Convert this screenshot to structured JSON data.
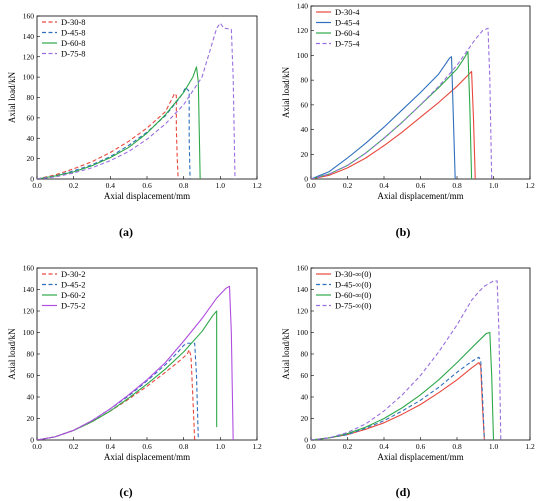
{
  "chart_data": [
    {
      "type": "line",
      "panel_label": "(a)",
      "xlabel": "Axial displacement/mm",
      "ylabel": "Axial load/kN",
      "xlim": [
        0,
        1.2
      ],
      "ylim": [
        0,
        160
      ],
      "xticks": [
        "0.0",
        "0.2",
        "0.4",
        "0.6",
        "0.8",
        "1.0",
        "1.2"
      ],
      "yticks": [
        "0",
        "20",
        "40",
        "60",
        "80",
        "100",
        "120",
        "140",
        "160"
      ],
      "legend_position": "top-left",
      "series": [
        {
          "name": "D-30-8",
          "color": "#e8473c",
          "dash": "dashed",
          "points": [
            [
              0,
              0
            ],
            [
              0.1,
              4
            ],
            [
              0.2,
              10
            ],
            [
              0.3,
              17
            ],
            [
              0.4,
              26
            ],
            [
              0.5,
              37
            ],
            [
              0.6,
              50
            ],
            [
              0.7,
              66
            ],
            [
              0.74,
              80
            ],
            [
              0.75,
              84
            ],
            [
              0.76,
              82
            ],
            [
              0.76,
              50
            ],
            [
              0.765,
              20
            ],
            [
              0.77,
              0
            ]
          ]
        },
        {
          "name": "D-45-8",
          "color": "#2f6fbd",
          "dash": "dashed",
          "points": [
            [
              0,
              0
            ],
            [
              0.1,
              3
            ],
            [
              0.2,
              8
            ],
            [
              0.3,
              14
            ],
            [
              0.4,
              22
            ],
            [
              0.5,
              33
            ],
            [
              0.6,
              46
            ],
            [
              0.7,
              62
            ],
            [
              0.78,
              80
            ],
            [
              0.8,
              86
            ],
            [
              0.81,
              90
            ],
            [
              0.83,
              86
            ],
            [
              0.83,
              40
            ],
            [
              0.835,
              0
            ]
          ]
        },
        {
          "name": "D-60-8",
          "color": "#2ea84a",
          "dash": "solid",
          "points": [
            [
              0,
              0
            ],
            [
              0.1,
              3
            ],
            [
              0.2,
              7
            ],
            [
              0.3,
              13
            ],
            [
              0.4,
              21
            ],
            [
              0.5,
              31
            ],
            [
              0.6,
              45
            ],
            [
              0.7,
              63
            ],
            [
              0.8,
              85
            ],
            [
              0.85,
              100
            ],
            [
              0.87,
              110
            ],
            [
              0.88,
              95
            ],
            [
              0.89,
              0
            ]
          ]
        },
        {
          "name": "D-75-8",
          "color": "#9a6fe0",
          "dash": "dashed",
          "points": [
            [
              0,
              0
            ],
            [
              0.1,
              2
            ],
            [
              0.2,
              6
            ],
            [
              0.3,
              11
            ],
            [
              0.4,
              18
            ],
            [
              0.5,
              27
            ],
            [
              0.6,
              39
            ],
            [
              0.7,
              54
            ],
            [
              0.8,
              73
            ],
            [
              0.9,
              100
            ],
            [
              0.95,
              130
            ],
            [
              0.98,
              148
            ],
            [
              1.0,
              153
            ],
            [
              1.02,
              148
            ],
            [
              1.06,
              147
            ],
            [
              1.07,
              100
            ],
            [
              1.08,
              0
            ]
          ]
        }
      ]
    },
    {
      "type": "line",
      "panel_label": "(b)",
      "xlabel": "Axial displacement/mm",
      "ylabel": "Axial load/kN",
      "xlim": [
        0,
        1.2
      ],
      "ylim": [
        0,
        140
      ],
      "xticks": [
        "0.0",
        "0.2",
        "0.4",
        "0.6",
        "0.8",
        "1.0",
        "1.2"
      ],
      "yticks": [
        "0",
        "20",
        "40",
        "60",
        "80",
        "100",
        "120",
        "140"
      ],
      "legend_position": "top-left",
      "series": [
        {
          "name": "D-30-4",
          "color": "#e8473c",
          "dash": "solid",
          "points": [
            [
              0,
              0
            ],
            [
              0.1,
              3
            ],
            [
              0.2,
              9
            ],
            [
              0.3,
              17
            ],
            [
              0.4,
              27
            ],
            [
              0.5,
              38
            ],
            [
              0.6,
              50
            ],
            [
              0.7,
              62
            ],
            [
              0.8,
              75
            ],
            [
              0.86,
              84
            ],
            [
              0.88,
              87
            ],
            [
              0.89,
              50
            ],
            [
              0.9,
              0
            ]
          ]
        },
        {
          "name": "D-45-4",
          "color": "#2f6fbd",
          "dash": "solid",
          "points": [
            [
              0,
              0
            ],
            [
              0.1,
              6
            ],
            [
              0.2,
              17
            ],
            [
              0.3,
              29
            ],
            [
              0.4,
              42
            ],
            [
              0.5,
              56
            ],
            [
              0.6,
              70
            ],
            [
              0.7,
              85
            ],
            [
              0.76,
              98
            ],
            [
              0.77,
              99
            ],
            [
              0.78,
              50
            ],
            [
              0.79,
              0
            ]
          ]
        },
        {
          "name": "D-60-4",
          "color": "#2ea84a",
          "dash": "solid",
          "points": [
            [
              0,
              0
            ],
            [
              0.1,
              4
            ],
            [
              0.2,
              11
            ],
            [
              0.3,
              21
            ],
            [
              0.4,
              33
            ],
            [
              0.5,
              46
            ],
            [
              0.6,
              60
            ],
            [
              0.7,
              74
            ],
            [
              0.8,
              89
            ],
            [
              0.84,
              98
            ],
            [
              0.86,
              103
            ],
            [
              0.87,
              60
            ],
            [
              0.88,
              0
            ]
          ]
        },
        {
          "name": "D-75-4",
          "color": "#9a6fe0",
          "dash": "dashed",
          "points": [
            [
              0,
              0
            ],
            [
              0.1,
              4
            ],
            [
              0.2,
              11
            ],
            [
              0.3,
              21
            ],
            [
              0.4,
              33
            ],
            [
              0.5,
              46
            ],
            [
              0.6,
              60
            ],
            [
              0.7,
              75
            ],
            [
              0.8,
              92
            ],
            [
              0.9,
              113
            ],
            [
              0.94,
              120
            ],
            [
              0.97,
              122
            ],
            [
              0.98,
              80
            ],
            [
              0.99,
              0
            ]
          ]
        }
      ]
    },
    {
      "type": "line",
      "panel_label": "(c)",
      "xlabel": "Axial displacement/mm",
      "ylabel": "Axial load/kN",
      "xlim": [
        0,
        1.2
      ],
      "ylim": [
        0,
        160
      ],
      "xticks": [
        "0.0",
        "0.2",
        "0.4",
        "0.6",
        "0.8",
        "1.0",
        "1.2"
      ],
      "yticks": [
        "0",
        "20",
        "40",
        "60",
        "80",
        "100",
        "120",
        "140",
        "160"
      ],
      "legend_position": "top-left",
      "series": [
        {
          "name": "D-30-2",
          "color": "#e8473c",
          "dash": "dashed",
          "points": [
            [
              0,
              0
            ],
            [
              0.1,
              3
            ],
            [
              0.2,
              9
            ],
            [
              0.3,
              17
            ],
            [
              0.4,
              27
            ],
            [
              0.5,
              38
            ],
            [
              0.6,
              50
            ],
            [
              0.7,
              63
            ],
            [
              0.78,
              74
            ],
            [
              0.82,
              80
            ],
            [
              0.83,
              84
            ],
            [
              0.84,
              78
            ],
            [
              0.85,
              40
            ],
            [
              0.86,
              0
            ]
          ]
        },
        {
          "name": "D-45-2",
          "color": "#2f6fbd",
          "dash": "dashed",
          "points": [
            [
              0,
              0
            ],
            [
              0.1,
              3
            ],
            [
              0.2,
              9
            ],
            [
              0.3,
              18
            ],
            [
              0.4,
              29
            ],
            [
              0.5,
              41
            ],
            [
              0.6,
              55
            ],
            [
              0.7,
              70
            ],
            [
              0.77,
              82
            ],
            [
              0.8,
              88
            ],
            [
              0.82,
              90
            ],
            [
              0.86,
              90
            ],
            [
              0.87,
              60
            ],
            [
              0.88,
              0
            ]
          ]
        },
        {
          "name": "D-60-2",
          "color": "#2ea84a",
          "dash": "solid",
          "points": [
            [
              0,
              0
            ],
            [
              0.1,
              3
            ],
            [
              0.2,
              9
            ],
            [
              0.3,
              17
            ],
            [
              0.4,
              27
            ],
            [
              0.5,
              39
            ],
            [
              0.6,
              52
            ],
            [
              0.7,
              66
            ],
            [
              0.8,
              82
            ],
            [
              0.9,
              101
            ],
            [
              0.96,
              116
            ],
            [
              0.98,
              120
            ],
            [
              0.98,
              12
            ]
          ]
        },
        {
          "name": "D-75-2",
          "color": "#b14ee0",
          "dash": "solid",
          "points": [
            [
              0,
              0
            ],
            [
              0.1,
              3
            ],
            [
              0.2,
              9
            ],
            [
              0.3,
              18
            ],
            [
              0.4,
              29
            ],
            [
              0.5,
              42
            ],
            [
              0.6,
              56
            ],
            [
              0.7,
              72
            ],
            [
              0.8,
              92
            ],
            [
              0.9,
              113
            ],
            [
              0.98,
              132
            ],
            [
              1.03,
              141
            ],
            [
              1.05,
              143
            ],
            [
              1.06,
              100
            ],
            [
              1.07,
              0
            ]
          ]
        }
      ]
    },
    {
      "type": "line",
      "panel_label": "(d)",
      "xlabel": "Axial displacement/mm",
      "ylabel": "Axial load/kN",
      "xlim": [
        0,
        1.2
      ],
      "ylim": [
        0,
        160
      ],
      "xticks": [
        "0.0",
        "0.2",
        "0.4",
        "0.6",
        "0.8",
        "1.0",
        "1.2"
      ],
      "yticks": [
        "0",
        "20",
        "40",
        "60",
        "80",
        "100",
        "120",
        "140",
        "160"
      ],
      "legend_position": "top-left",
      "series": [
        {
          "name": "D-30-∞(0)",
          "color": "#e8473c",
          "dash": "solid",
          "points": [
            [
              0,
              0
            ],
            [
              0.1,
              2
            ],
            [
              0.2,
              5
            ],
            [
              0.3,
              10
            ],
            [
              0.4,
              16
            ],
            [
              0.5,
              24
            ],
            [
              0.6,
              33
            ],
            [
              0.7,
              44
            ],
            [
              0.8,
              56
            ],
            [
              0.88,
              67
            ],
            [
              0.92,
              72
            ],
            [
              0.93,
              69
            ],
            [
              0.94,
              30
            ],
            [
              0.95,
              0
            ]
          ]
        },
        {
          "name": "D-45-∞(0)",
          "color": "#2f6fbd",
          "dash": "dashed",
          "points": [
            [
              0,
              0
            ],
            [
              0.1,
              2
            ],
            [
              0.2,
              5
            ],
            [
              0.3,
              11
            ],
            [
              0.4,
              18
            ],
            [
              0.5,
              27
            ],
            [
              0.6,
              37
            ],
            [
              0.7,
              49
            ],
            [
              0.8,
              63
            ],
            [
              0.88,
              73
            ],
            [
              0.92,
              77
            ],
            [
              0.93,
              74
            ],
            [
              0.94,
              40
            ],
            [
              0.95,
              0
            ]
          ]
        },
        {
          "name": "D-60-∞(0)",
          "color": "#2ea84a",
          "dash": "solid",
          "points": [
            [
              0,
              0
            ],
            [
              0.1,
              2
            ],
            [
              0.2,
              6
            ],
            [
              0.3,
              12
            ],
            [
              0.4,
              20
            ],
            [
              0.5,
              30
            ],
            [
              0.6,
              42
            ],
            [
              0.7,
              56
            ],
            [
              0.8,
              72
            ],
            [
              0.9,
              89
            ],
            [
              0.96,
              99
            ],
            [
              0.98,
              100
            ],
            [
              0.99,
              60
            ],
            [
              1.0,
              0
            ]
          ]
        },
        {
          "name": "D-75-∞(0)",
          "color": "#9a6fe0",
          "dash": "dashed",
          "points": [
            [
              0,
              0
            ],
            [
              0.1,
              2
            ],
            [
              0.2,
              7
            ],
            [
              0.3,
              15
            ],
            [
              0.4,
              27
            ],
            [
              0.5,
              42
            ],
            [
              0.6,
              60
            ],
            [
              0.7,
              82
            ],
            [
              0.8,
              107
            ],
            [
              0.88,
              130
            ],
            [
              0.92,
              138
            ],
            [
              0.95,
              143
            ],
            [
              1.0,
              148
            ],
            [
              1.02,
              148
            ],
            [
              1.03,
              100
            ],
            [
              1.04,
              0
            ]
          ]
        }
      ]
    }
  ]
}
